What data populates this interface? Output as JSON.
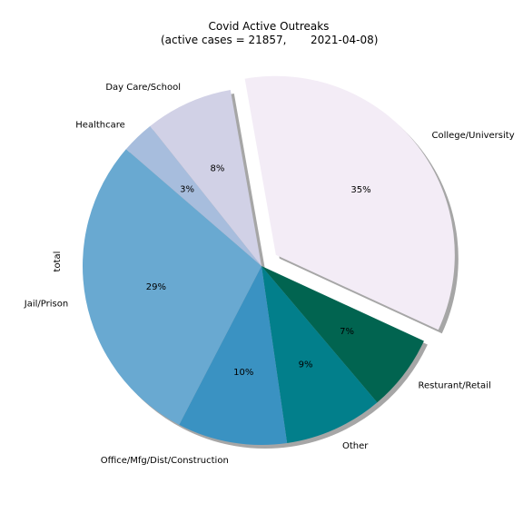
{
  "chart_data": {
    "type": "pie",
    "title": "Covid Active Outreaks",
    "subtitle_prefix": "(active cases = 21857,",
    "subtitle_date": "2021-04-08)",
    "ylabel": "total",
    "shadow": true,
    "start_direction": "clockwise",
    "slices": [
      {
        "label": "College/University",
        "percent": 35,
        "pct_label": "35%",
        "color": "#f3ecf6",
        "exploded": true
      },
      {
        "label": "Resturant/Retail",
        "percent": 7,
        "pct_label": "7%",
        "color": "#016450",
        "exploded": false
      },
      {
        "label": "Other",
        "percent": 9,
        "pct_label": "9%",
        "color": "#027f8b",
        "exploded": false
      },
      {
        "label": "Office/Mfg/Dist/Construction",
        "percent": 10,
        "pct_label": "10%",
        "color": "#3a92c2",
        "exploded": false
      },
      {
        "label": "Jail/Prison",
        "percent": 29,
        "pct_label": "29%",
        "color": "#69a9d1",
        "exploded": false
      },
      {
        "label": "Healthcare",
        "percent": 3,
        "pct_label": "3%",
        "color": "#a7bddd",
        "exploded": false
      },
      {
        "label": "Day Care/School",
        "percent": 8,
        "pct_label": "8%",
        "color": "#d1d1e6",
        "exploded": false
      }
    ]
  }
}
